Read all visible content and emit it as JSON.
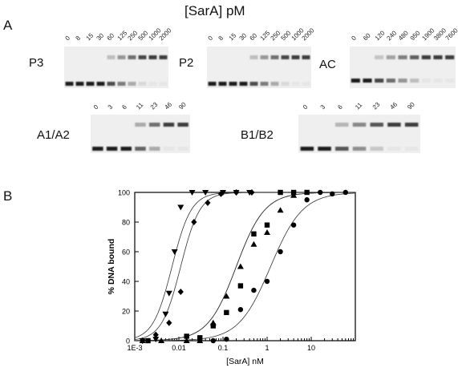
{
  "header": "[SarA] pM",
  "panels": {
    "a": "A",
    "b": "B"
  },
  "gels": [
    {
      "label": "P3",
      "lanes": [
        "0",
        "8",
        "15",
        "30",
        "60",
        "125",
        "250",
        "500",
        "1000",
        "2000"
      ]
    },
    {
      "label": "P2",
      "lanes": [
        "0",
        "8",
        "15",
        "30",
        "60",
        "125",
        "250",
        "500",
        "1000",
        "2000"
      ]
    },
    {
      "label": "AC",
      "lanes": [
        "0",
        "60",
        "120",
        "240",
        "480",
        "950",
        "1900",
        "3800",
        "7600"
      ]
    },
    {
      "label": "A1/A2",
      "lanes": [
        "0",
        "3",
        "6",
        "11",
        "23",
        "46",
        "90"
      ]
    },
    {
      "label": "B1/B2",
      "lanes": [
        "0",
        "3",
        "6",
        "11",
        "23",
        "46",
        "90"
      ]
    }
  ],
  "chart_data": {
    "type": "scatter",
    "xlabel": "[SarA] nM",
    "ylabel": "% DNA bound",
    "xscale": "log",
    "xlim": [
      0.001,
      100
    ],
    "ylim": [
      0,
      100
    ],
    "xticks": [
      0.001,
      0.01,
      0.1,
      1,
      10
    ],
    "xticklabels": [
      "1E-3",
      "0.01",
      "0.1",
      "1",
      "10"
    ],
    "yticks": [
      0,
      20,
      40,
      60,
      80,
      100
    ],
    "series": [
      {
        "marker": "triangle-down",
        "fit_kd": 0.007,
        "fit_n": 2.0,
        "points": [
          [
            0.0015,
            0
          ],
          [
            0.003,
            1
          ],
          [
            0.005,
            18
          ],
          [
            0.006,
            32
          ],
          [
            0.008,
            60
          ],
          [
            0.011,
            90
          ],
          [
            0.02,
            100
          ],
          [
            0.04,
            100
          ],
          [
            0.1,
            100
          ],
          [
            0.2,
            100
          ],
          [
            0.4,
            100
          ]
        ]
      },
      {
        "marker": "diamond",
        "fit_kd": 0.011,
        "fit_n": 2.0,
        "points": [
          [
            0.0015,
            0
          ],
          [
            0.003,
            4
          ],
          [
            0.006,
            12
          ],
          [
            0.011,
            33
          ],
          [
            0.022,
            80
          ],
          [
            0.045,
            93
          ],
          [
            0.09,
            99
          ],
          [
            0.2,
            100
          ],
          [
            0.45,
            100
          ]
        ]
      },
      {
        "marker": "square",
        "fit_kd": 0.2,
        "fit_n": 1.35,
        "points": [
          [
            0.002,
            0
          ],
          [
            0.015,
            3
          ],
          [
            0.03,
            2
          ],
          [
            0.06,
            10
          ],
          [
            0.12,
            19
          ],
          [
            0.25,
            37
          ],
          [
            0.5,
            72
          ],
          [
            1,
            78
          ],
          [
            2,
            100
          ],
          [
            4,
            100
          ],
          [
            8,
            100
          ]
        ]
      },
      {
        "marker": "triangle-up",
        "fit_kd": 0.2,
        "fit_n": 1.35,
        "points": [
          [
            0.0015,
            0
          ],
          [
            0.004,
            0
          ],
          [
            0.015,
            0
          ],
          [
            0.03,
            0
          ],
          [
            0.06,
            12
          ],
          [
            0.12,
            30
          ],
          [
            0.25,
            50
          ],
          [
            0.5,
            65
          ],
          [
            1,
            73
          ],
          [
            2,
            88
          ],
          [
            4,
            98
          ]
        ]
      },
      {
        "marker": "circle",
        "fit_kd": 1.2,
        "fit_n": 1.2,
        "points": [
          [
            0.06,
            0
          ],
          [
            0.12,
            1
          ],
          [
            0.25,
            21
          ],
          [
            0.5,
            34
          ],
          [
            1,
            40
          ],
          [
            2,
            60
          ],
          [
            4,
            78
          ],
          [
            8,
            95
          ],
          [
            16,
            100
          ],
          [
            30,
            99
          ],
          [
            60,
            100
          ]
        ]
      }
    ]
  }
}
